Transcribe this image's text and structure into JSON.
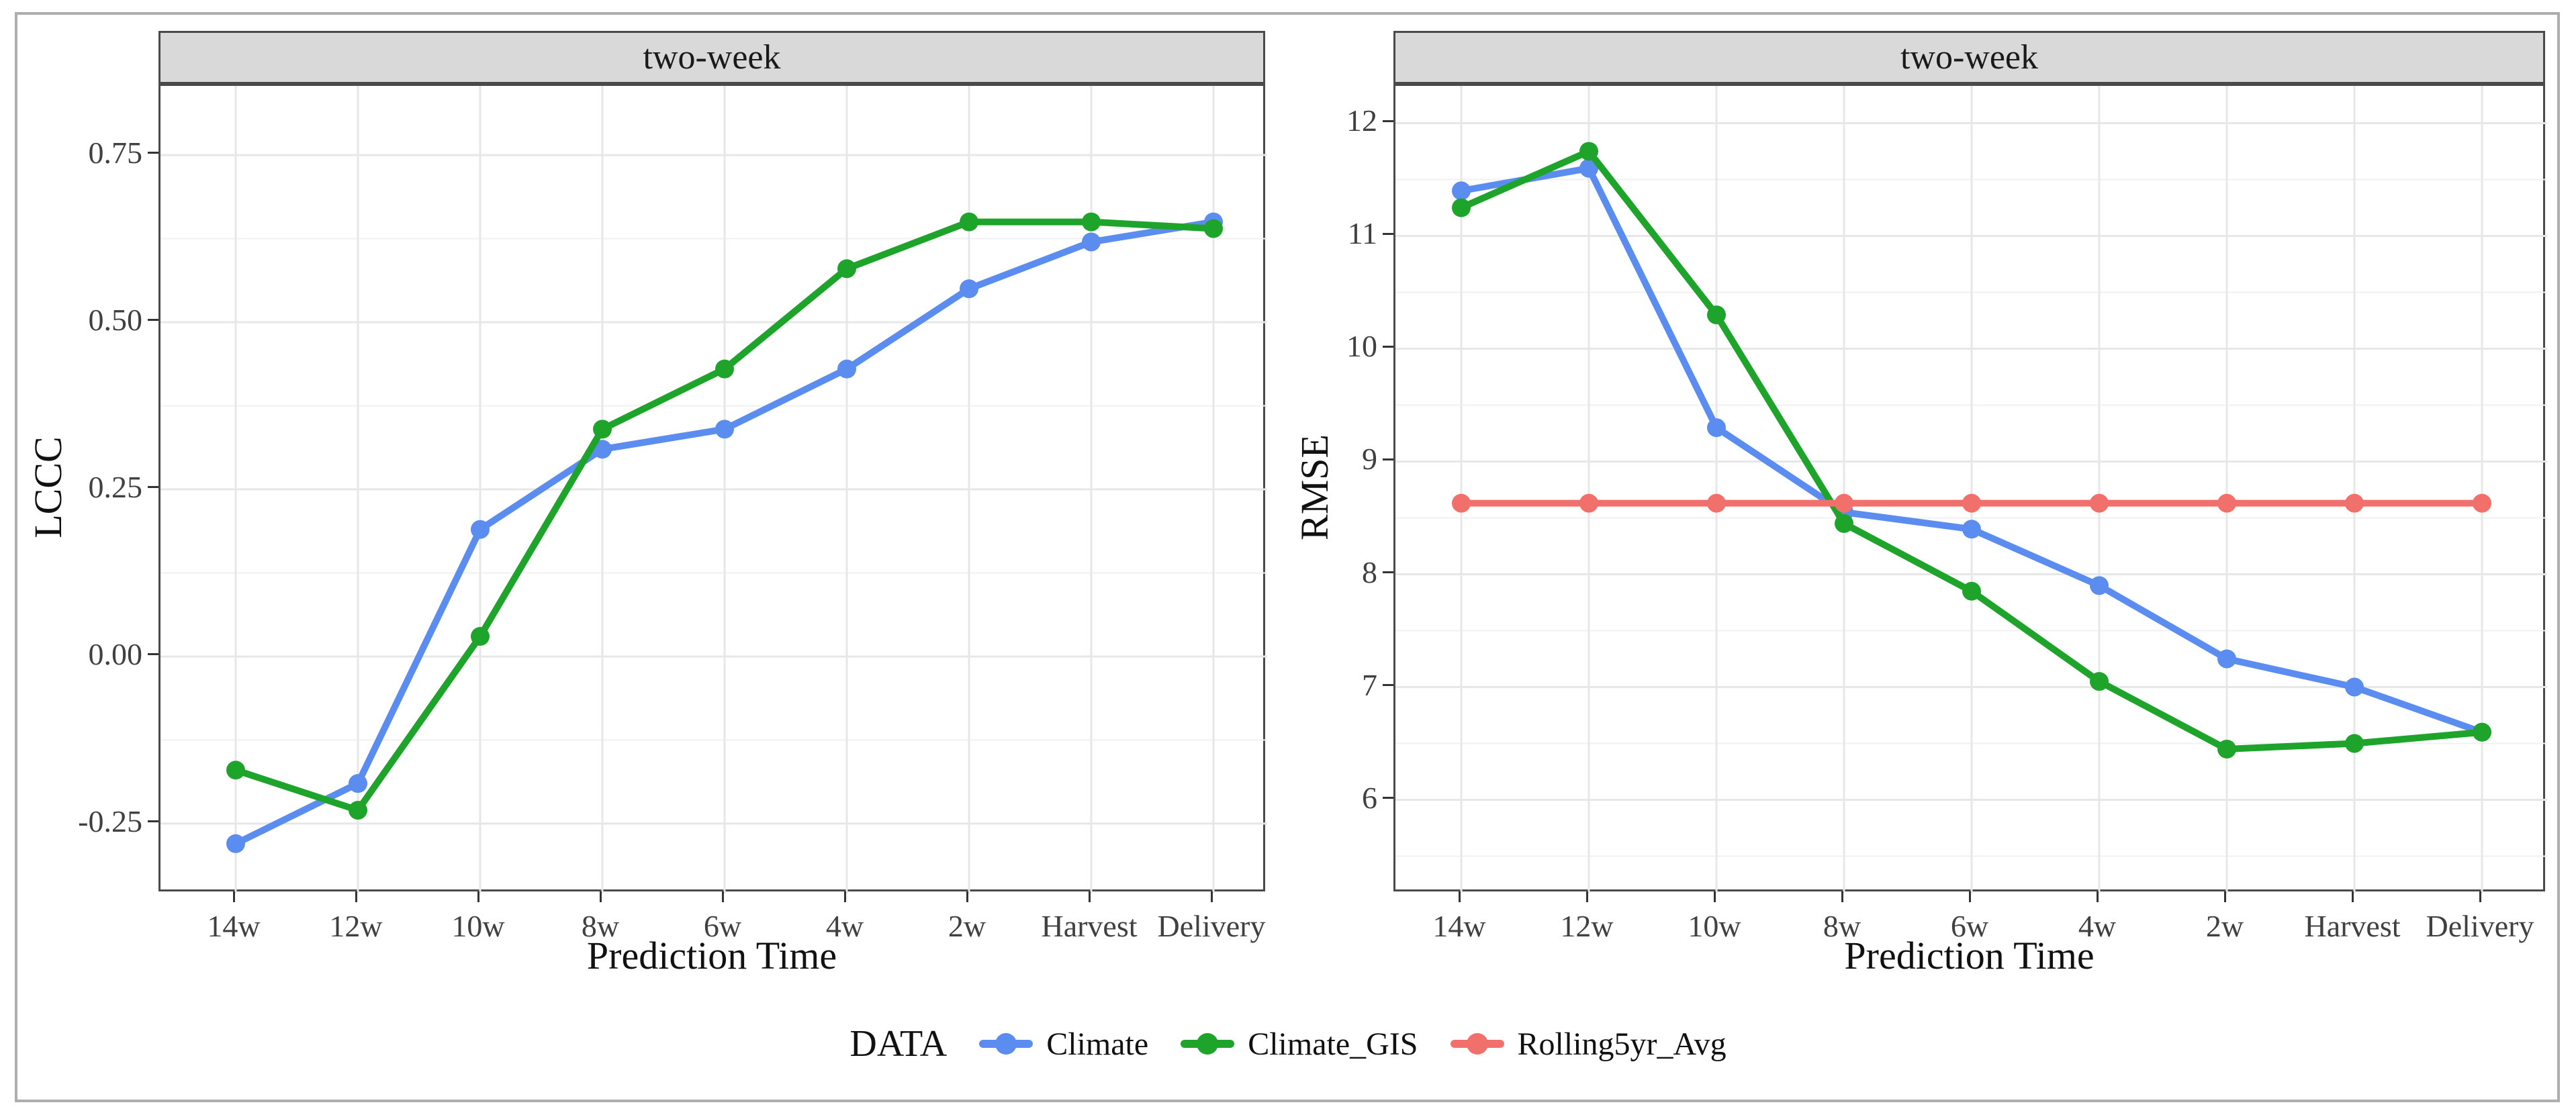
{
  "figure": {
    "border_color": "#aeaeae",
    "background": "#ffffff",
    "strip_fill": "#d9d9d9",
    "grid_major_color": "#e7e7e7",
    "grid_minor_color": "#f1f1f1",
    "panel_border_color": "#4a4a4a",
    "tick_color": "#333333",
    "tick_label_color": "#404040"
  },
  "legend": {
    "title": "DATA",
    "items": [
      {
        "label": "Climate",
        "color": "#5b8df0"
      },
      {
        "label": "Climate_GIS",
        "color": "#1ea42b"
      },
      {
        "label": "Rolling5yr_Avg",
        "color": "#f1706b"
      }
    ]
  },
  "chart_data": [
    {
      "type": "line",
      "facet_strip": "two-week",
      "xlabel": "Prediction Time",
      "ylabel": "LCCC",
      "categories": [
        "14w",
        "12w",
        "10w",
        "8w",
        "6w",
        "4w",
        "2w",
        "Harvest",
        "Delivery"
      ],
      "ylim": [
        -0.3545,
        0.8534
      ],
      "yticks_major": [
        0.75,
        0.5,
        0.25,
        0.0,
        -0.25
      ],
      "ytick_labels": [
        "0.75",
        "0.50",
        "0.25",
        "0.00",
        "-0.25"
      ],
      "yticks_minor": [
        0.625,
        0.375,
        0.125,
        -0.125
      ],
      "grid": "major+minor",
      "legend_position": "bottom",
      "series": [
        {
          "name": "Climate",
          "color": "#5b8df0",
          "values": [
            -0.28,
            -0.19,
            0.19,
            0.31,
            0.34,
            0.43,
            0.55,
            0.62,
            0.65
          ]
        },
        {
          "name": "Climate_GIS",
          "color": "#1ea42b",
          "values": [
            -0.17,
            -0.23,
            0.03,
            0.34,
            0.43,
            0.58,
            0.65,
            0.65,
            0.64
          ]
        }
      ]
    },
    {
      "type": "line",
      "facet_strip": "two-week",
      "xlabel": "Prediction Time",
      "ylabel": "RMSE",
      "categories": [
        "14w",
        "12w",
        "10w",
        "8w",
        "6w",
        "4w",
        "2w",
        "Harvest",
        "Delivery"
      ],
      "ylim": [
        5.17,
        12.33
      ],
      "yticks_major": [
        12,
        11,
        10,
        9,
        8,
        7,
        6
      ],
      "ytick_labels": [
        "12",
        "11",
        "10",
        "9",
        "8",
        "7",
        "6"
      ],
      "yticks_minor": [
        11.5,
        10.5,
        9.5,
        8.5,
        7.5,
        6.5,
        5.5
      ],
      "grid": "major+minor",
      "legend_position": "bottom",
      "series": [
        {
          "name": "Climate",
          "color": "#5b8df0",
          "values": [
            11.4,
            11.6,
            9.3,
            8.55,
            8.4,
            7.9,
            7.25,
            7.0,
            6.6
          ]
        },
        {
          "name": "Climate_GIS",
          "color": "#1ea42b",
          "values": [
            11.25,
            11.75,
            10.3,
            8.45,
            7.85,
            7.05,
            6.45,
            6.5,
            6.6
          ]
        },
        {
          "name": "Rolling5yr_Avg",
          "color": "#f1706b",
          "values": [
            8.63,
            8.63,
            8.63,
            8.63,
            8.63,
            8.63,
            8.63,
            8.63,
            8.63
          ]
        }
      ]
    }
  ]
}
